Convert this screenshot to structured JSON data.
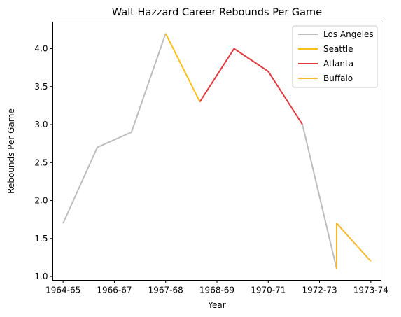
{
  "chart_data": {
    "type": "line",
    "title": "Walt Hazzard Career Rebounds Per Game",
    "xlabel": "Year",
    "ylabel": "Rebounds Per Game",
    "x_tick_labels": [
      "1964-65",
      "1966-67",
      "1967-68",
      "1968-69",
      "1970-71",
      "1972-73",
      "1973-74"
    ],
    "yticks": [
      1.0,
      1.5,
      2.0,
      2.5,
      3.0,
      3.5,
      4.0
    ],
    "ytick_labels": [
      "1.0",
      "1.5",
      "2.0",
      "2.5",
      "3.0",
      "3.5",
      "4.0"
    ],
    "xlim": [
      -0.3,
      9.3
    ],
    "ylim": [
      0.95,
      4.35
    ],
    "grid": false,
    "legend_position": "top-right",
    "series": [
      {
        "name": "Los Angeles",
        "color": "#bdbdbd",
        "x": [
          0,
          1,
          2,
          3
        ],
        "y": [
          1.7,
          2.7,
          2.9,
          4.2
        ]
      },
      {
        "name": "Seattle",
        "color": "#fbbf15",
        "x": [
          3,
          4
        ],
        "y": [
          4.2,
          3.3
        ]
      },
      {
        "name": "Atlanta",
        "color": "#e03a3e",
        "x": [
          4,
          5,
          6,
          7
        ],
        "y": [
          3.3,
          4.0,
          3.7,
          3.0
        ]
      },
      {
        "name": "Los Angeles",
        "color": "#bdbdbd",
        "x": [
          7,
          8
        ],
        "y": [
          3.0,
          1.1
        ],
        "legend": false
      },
      {
        "name": "Buffalo",
        "color": "#f9b92d",
        "x": [
          8,
          8,
          9
        ],
        "y": [
          1.1,
          1.7,
          1.2
        ]
      }
    ]
  }
}
